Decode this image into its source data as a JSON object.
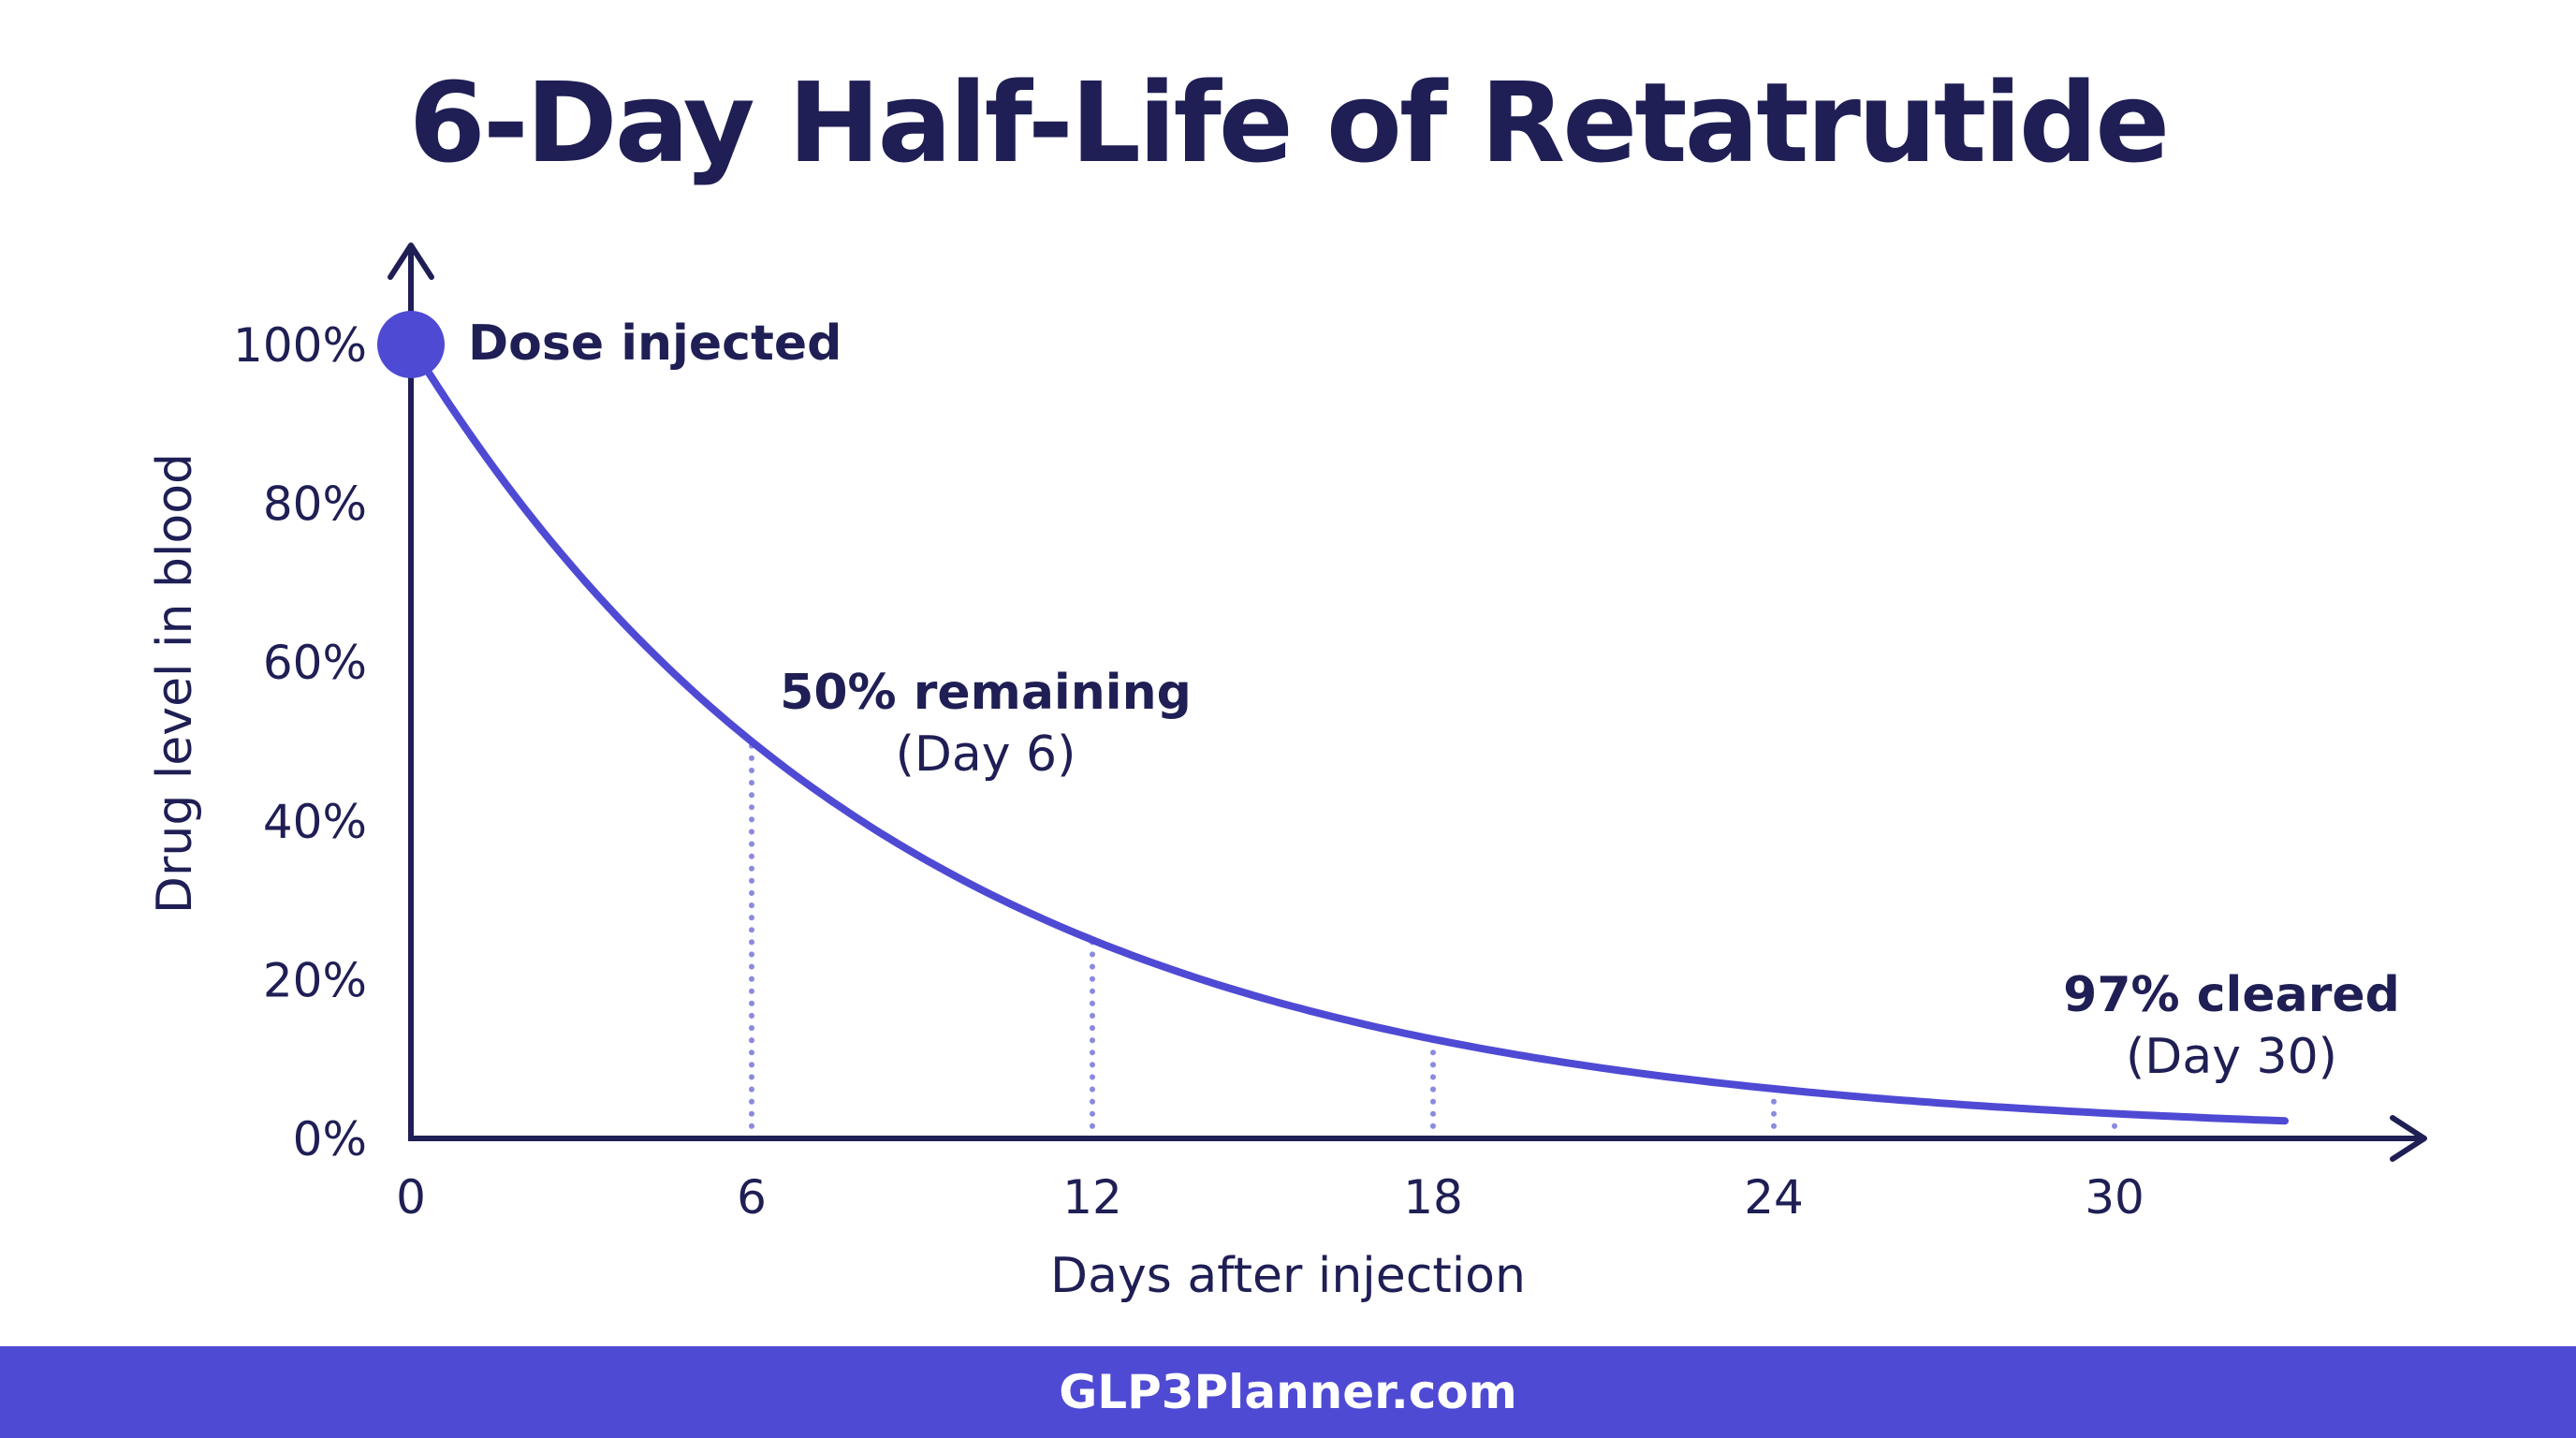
{
  "chart_data": {
    "type": "line",
    "title": "6-Day Half-Life of Retatrutide",
    "xlabel": "Days after injection",
    "ylabel": "Drug level in blood",
    "xlim": [
      0,
      33
    ],
    "ylim": [
      0,
      100
    ],
    "x_ticks": [
      0,
      6,
      12,
      18,
      24,
      30
    ],
    "y_ticks": [
      0,
      20,
      40,
      60,
      80,
      100
    ],
    "y_tick_labels": [
      "0%",
      "20%",
      "40%",
      "60%",
      "80%",
      "100%"
    ],
    "grid": false,
    "legend": "none",
    "series": [
      {
        "x": [
          0,
          3,
          6,
          9,
          12,
          15,
          18,
          21,
          24,
          27,
          30,
          33
        ],
        "y": [
          100,
          70.7,
          50,
          35.4,
          25,
          17.7,
          12.5,
          8.8,
          6.25,
          4.4,
          3.1,
          2.2
        ]
      }
    ],
    "guide_lines_x": [
      6,
      12,
      18,
      24,
      30
    ],
    "annotations": [
      {
        "label": "Dose injected",
        "x": 0,
        "y": 100
      },
      {
        "label": "50% remaining",
        "sublabel": "(Day 6)",
        "x": 6,
        "y": 50
      },
      {
        "label": "97% cleared",
        "sublabel": "(Day 30)",
        "x": 30,
        "y": 3.1
      }
    ],
    "colors": {
      "line": "#4f4ad4",
      "guide": "#8a8ae0",
      "axis": "#1f1f55",
      "text": "#1f1f55"
    }
  },
  "footer": {
    "text": "GLP3Planner.com"
  }
}
